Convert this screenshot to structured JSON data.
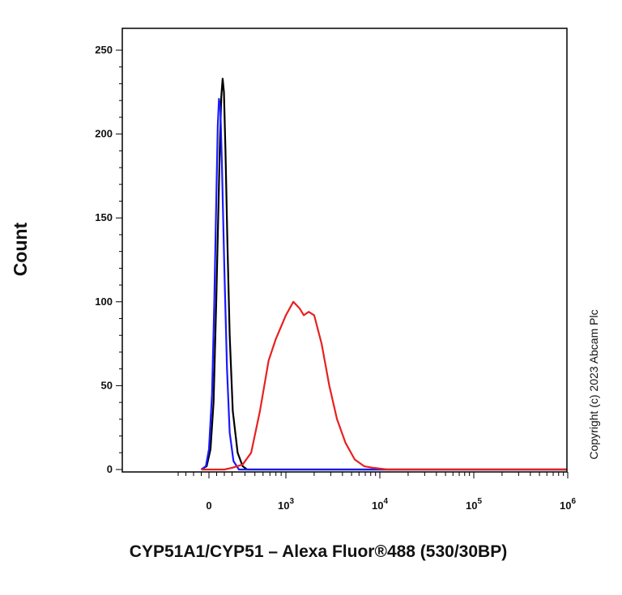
{
  "chart_data": {
    "type": "line",
    "title": "",
    "xlabel": "CYP51A1/CYP51 – Alexa Fluor®488 (530/30BP)",
    "ylabel": "Count",
    "x_scale": "biexponential",
    "ylim": [
      0,
      255
    ],
    "y_ticks": [
      0,
      50,
      100,
      150,
      200,
      250
    ],
    "x_ticks": [
      {
        "base": "0",
        "exp": ""
      },
      {
        "base": "10",
        "exp": "3"
      },
      {
        "base": "10",
        "exp": "4"
      },
      {
        "base": "10",
        "exp": "5"
      },
      {
        "base": "10",
        "exp": "6"
      }
    ],
    "grid": false,
    "legend": "none",
    "series": [
      {
        "color": "#000000",
        "points": [
          [
            -100,
            0
          ],
          [
            -30,
            2
          ],
          [
            20,
            12
          ],
          [
            60,
            40
          ],
          [
            95,
            100
          ],
          [
            120,
            150
          ],
          [
            140,
            190
          ],
          [
            160,
            222
          ],
          [
            178,
            233
          ],
          [
            195,
            225
          ],
          [
            215,
            190
          ],
          [
            240,
            135
          ],
          [
            270,
            80
          ],
          [
            305,
            35
          ],
          [
            340,
            10
          ],
          [
            380,
            2
          ],
          [
            420,
            0
          ],
          [
            1000,
            0
          ],
          [
            1000000,
            0
          ]
        ]
      },
      {
        "color": "#1a1aff",
        "points": [
          [
            -100,
            0
          ],
          [
            -40,
            2
          ],
          [
            0,
            12
          ],
          [
            40,
            45
          ],
          [
            70,
            100
          ],
          [
            95,
            160
          ],
          [
            115,
            205
          ],
          [
            130,
            221
          ],
          [
            148,
            215
          ],
          [
            170,
            180
          ],
          [
            200,
            120
          ],
          [
            235,
            60
          ],
          [
            270,
            22
          ],
          [
            310,
            5
          ],
          [
            350,
            0
          ],
          [
            1000000,
            0
          ]
        ]
      },
      {
        "color": "#e82020",
        "points": [
          [
            -100,
            0
          ],
          [
            200,
            0
          ],
          [
            300,
            1
          ],
          [
            380,
            3
          ],
          [
            460,
            10
          ],
          [
            560,
            35
          ],
          [
            680,
            65
          ],
          [
            800,
            78
          ],
          [
            1000,
            92
          ],
          [
            1200,
            100
          ],
          [
            1400,
            96
          ],
          [
            1550,
            92
          ],
          [
            1750,
            94
          ],
          [
            2000,
            92
          ],
          [
            2400,
            75
          ],
          [
            2900,
            50
          ],
          [
            3500,
            30
          ],
          [
            4300,
            16
          ],
          [
            5400,
            6
          ],
          [
            6800,
            2
          ],
          [
            8500,
            1
          ],
          [
            12000,
            0
          ],
          [
            1000000,
            0
          ]
        ]
      }
    ],
    "annotations": [
      "Copyright (c) 2023 Abcam Plc"
    ]
  }
}
